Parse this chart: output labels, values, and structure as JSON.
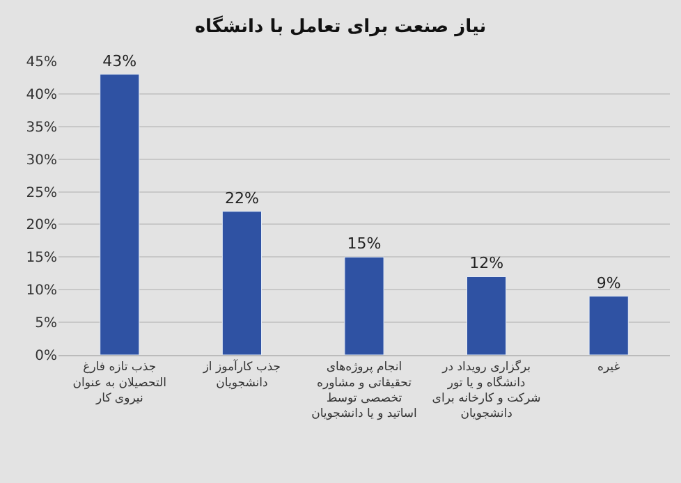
{
  "chart_data": {
    "type": "bar",
    "title": "نیاز صنعت برای تعامل با دانشگاه",
    "categories": [
      "جذب تازه فارغ\nالتحصیلان به عنوان\nنیروی کار",
      "جذب کارآموز از\nدانشجویان",
      "انجام پروژه‌های\nتحقیقاتی و مشاوره\nتخصصی توسط\nاساتید و یا دانشجویان",
      "برگزاری رویداد در\nدانشگاه و یا تور\nشرکت و کارخانه برای\nدانشجویان",
      "غیره"
    ],
    "values": [
      43,
      22,
      15,
      12,
      9
    ],
    "value_labels": [
      "43%",
      "22%",
      "15%",
      "12%",
      "9%"
    ],
    "color": "#2f52a3",
    "ylim": [
      0,
      45
    ],
    "yticks": [
      {
        "value": 0,
        "label": "0%"
      },
      {
        "value": 5,
        "label": "5%"
      },
      {
        "value": 10,
        "label": "10%"
      },
      {
        "value": 15,
        "label": "15%"
      },
      {
        "value": 20,
        "label": "20%"
      },
      {
        "value": 25,
        "label": "25%"
      },
      {
        "value": 30,
        "label": "30%"
      },
      {
        "value": 35,
        "label": "35%"
      },
      {
        "value": 40,
        "label": "40%"
      },
      {
        "value": 45,
        "label": "45%"
      }
    ],
    "grid": "y"
  }
}
